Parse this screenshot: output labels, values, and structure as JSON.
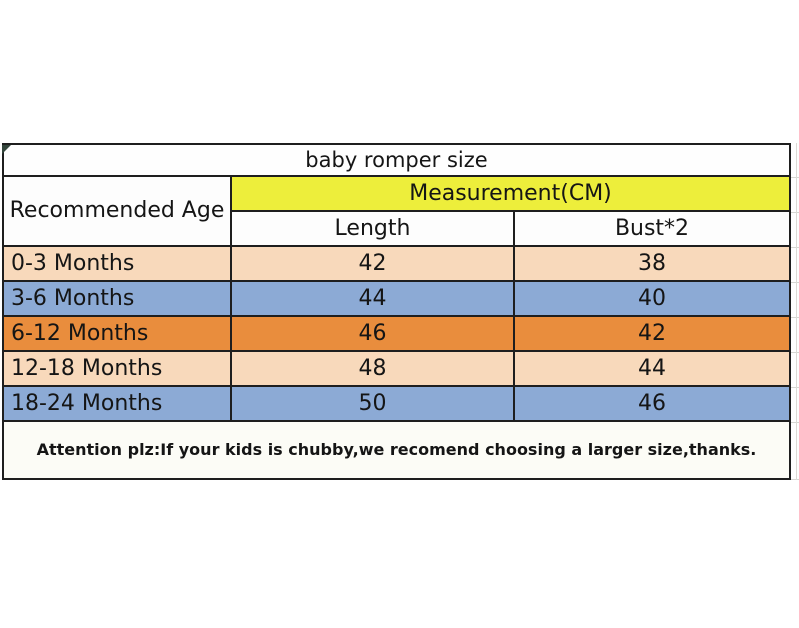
{
  "table": {
    "title": "baby romper size",
    "age_header": "Recommended Age",
    "measurement_header": "Measurement(CM)",
    "columns": [
      "Length",
      "Bust*2"
    ],
    "rows": [
      {
        "age": "0-3 Months",
        "length": "42",
        "bust": "38",
        "color": "peach"
      },
      {
        "age": "3-6 Months",
        "length": "44",
        "bust": "40",
        "color": "blue"
      },
      {
        "age": "6-12 Months",
        "length": "46",
        "bust": "42",
        "color": "orange"
      },
      {
        "age": "12-18 Months",
        "length": "48",
        "bust": "44",
        "color": "peach"
      },
      {
        "age": "18-24 Months",
        "length": "50",
        "bust": "46",
        "color": "blue"
      }
    ],
    "note": "Attention plz:If your kids is chubby,we recomend choosing a larger size,thanks."
  },
  "chart_data": {
    "type": "table",
    "title": "baby romper size",
    "measurement_unit": "CM",
    "columns": [
      "Recommended Age",
      "Length",
      "Bust*2"
    ],
    "rows": [
      [
        "0-3 Months",
        42,
        38
      ],
      [
        "3-6 Months",
        44,
        40
      ],
      [
        "6-12 Months",
        46,
        42
      ],
      [
        "12-18 Months",
        48,
        44
      ],
      [
        "18-24 Months",
        50,
        46
      ]
    ],
    "note": "Attention plz:If your kids is chubby,we recomend choosing a larger size,thanks."
  },
  "colors": {
    "yellow": "#edee3b",
    "peach": "#f8d9bb",
    "blue": "#8caad5",
    "orange": "#e98d3d",
    "line": "#1e1e1e"
  }
}
